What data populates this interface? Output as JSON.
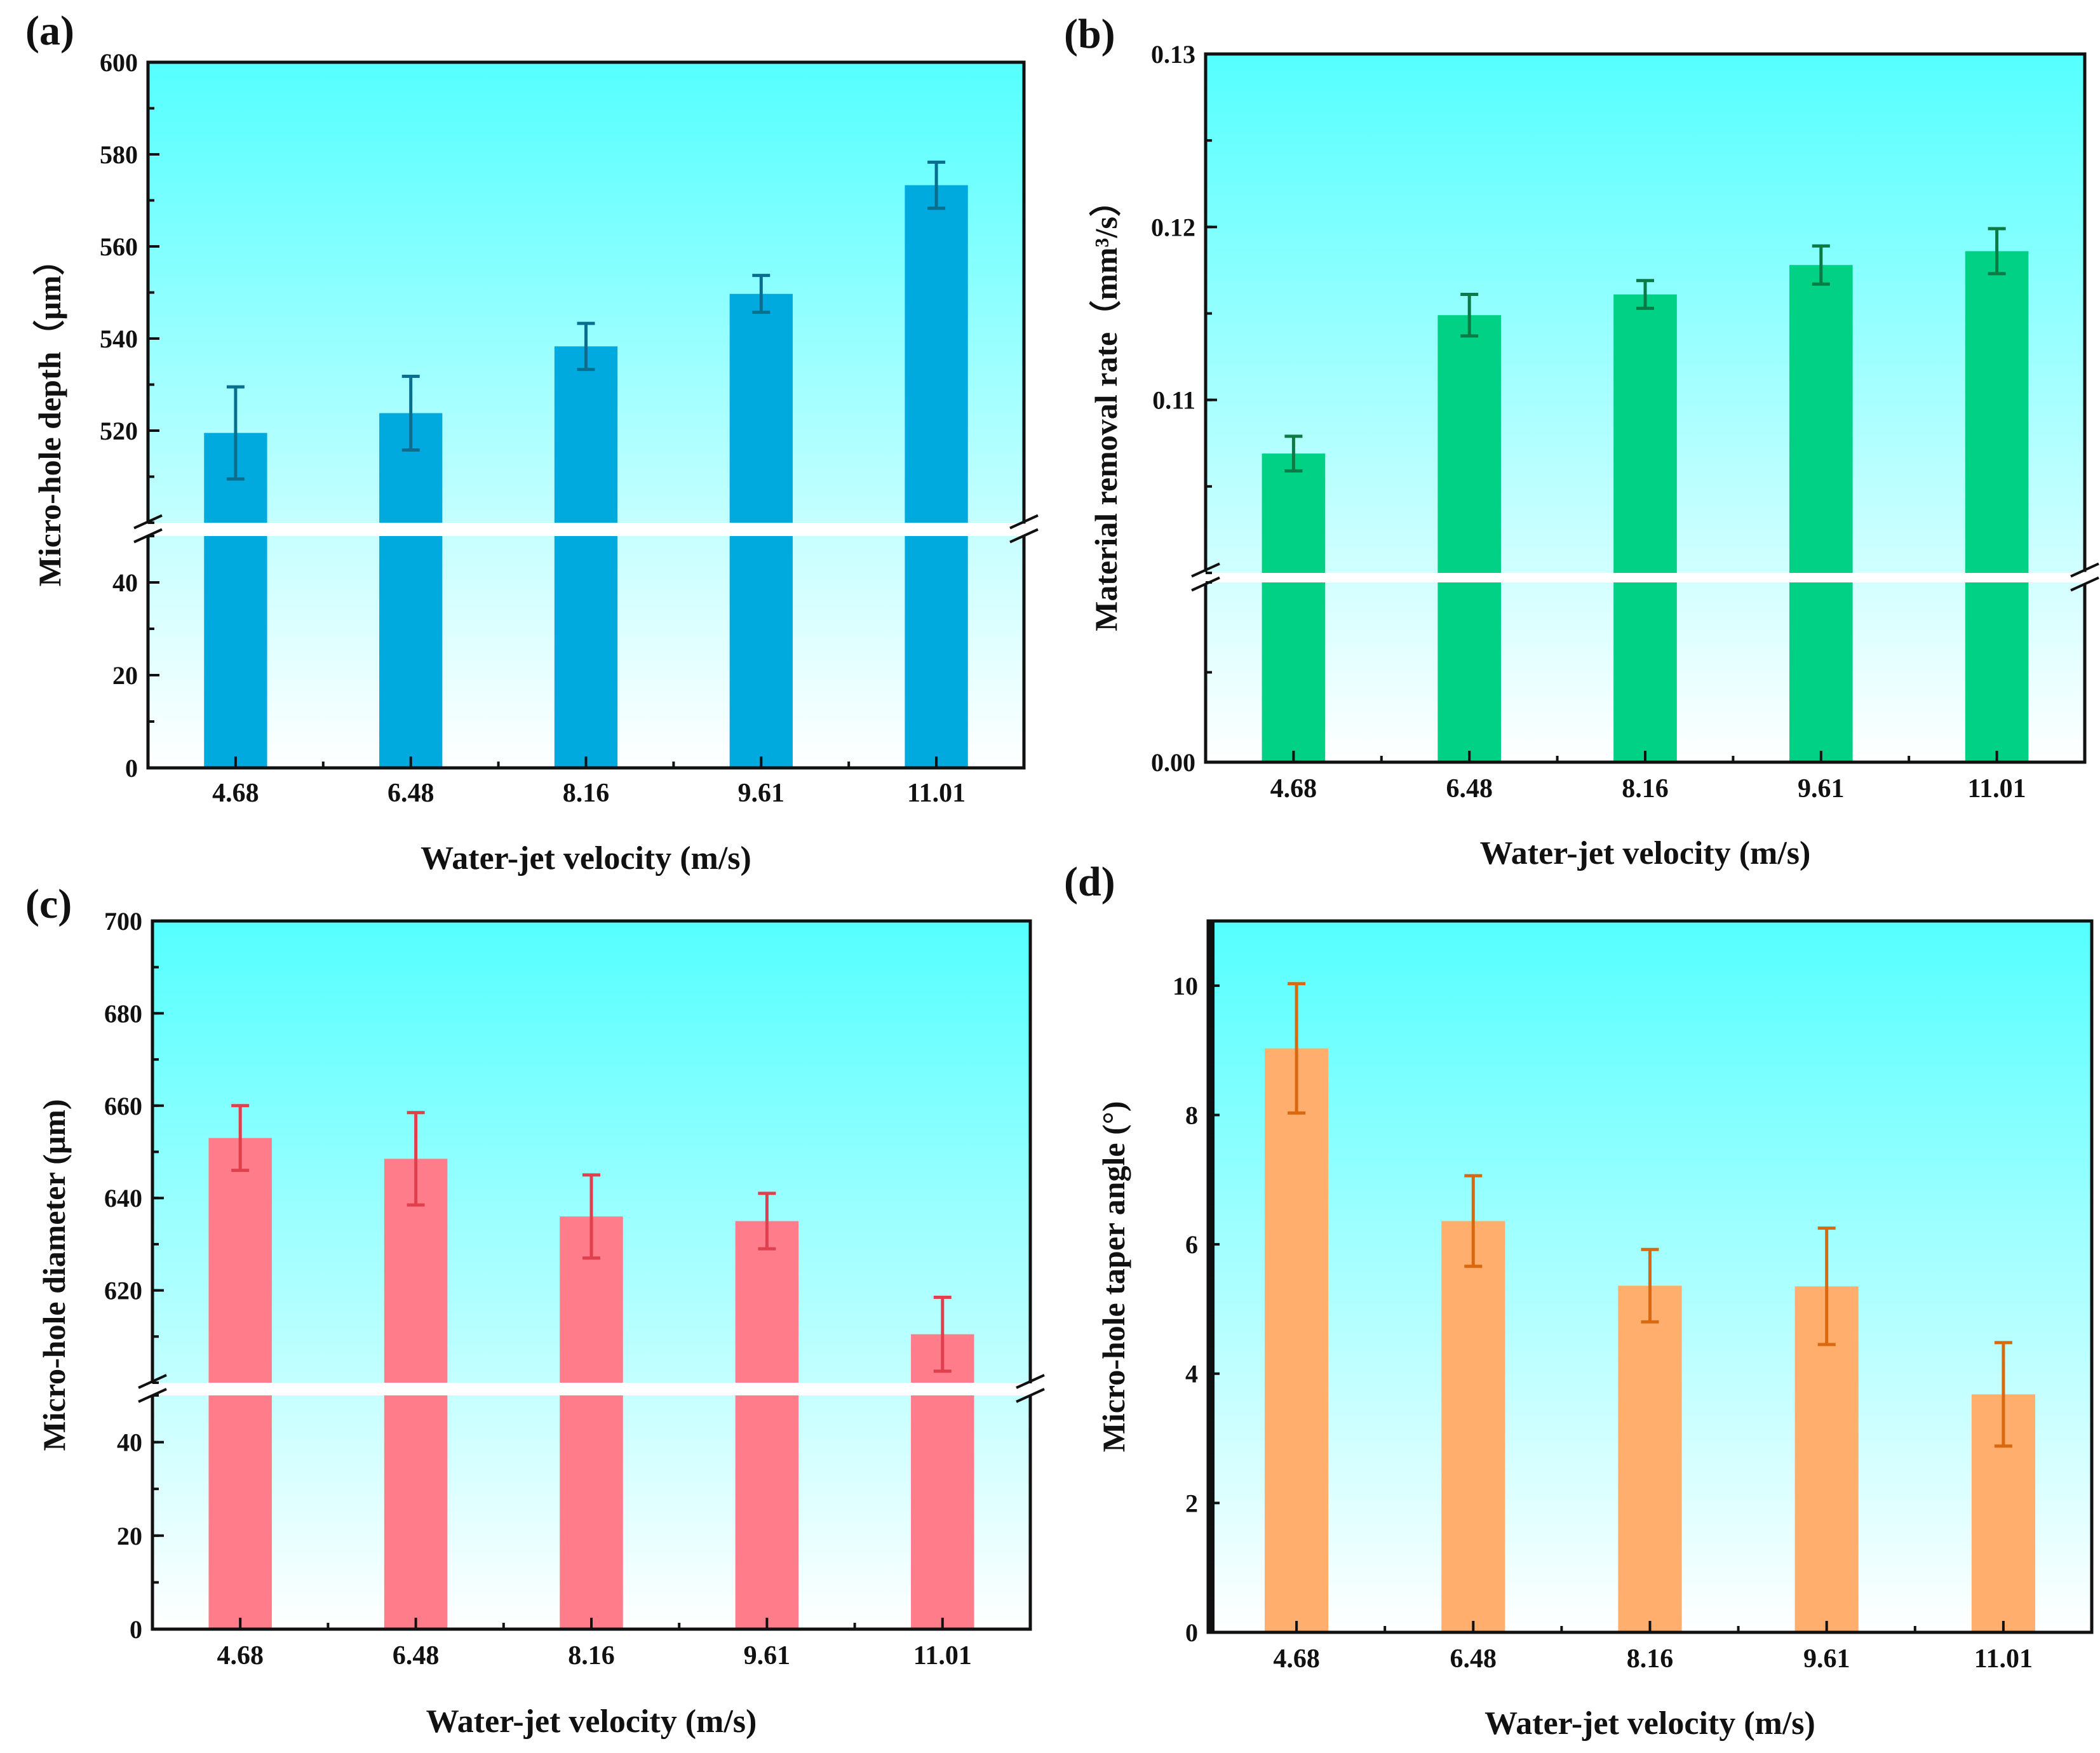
{
  "chart_data": [
    {
      "type": "bar",
      "panel_label": "(a)",
      "xlabel": "Water-jet velocity (m/s)",
      "ylabel": "Micro-hole depth（μm）",
      "categories": [
        "4.68",
        "6.48",
        "8.16",
        "9.61",
        "11.01"
      ],
      "values": [
        519.5,
        523.8,
        538.3,
        549.7,
        573.3
      ],
      "errors": [
        10,
        8,
        5,
        4,
        5
      ],
      "y_break": {
        "lower": [
          0,
          50
        ],
        "upper": [
          500,
          600
        ]
      },
      "yticks": [
        "0",
        "20",
        "40",
        "520",
        "540",
        "560",
        "580",
        "600"
      ],
      "bar_color": "#00a9de",
      "error_color": "#0a6f8f"
    },
    {
      "type": "bar",
      "panel_label": "(b)",
      "xlabel": "Water-jet velocity (m/s)",
      "ylabel": "Material removal rate（mm³/s）",
      "categories": [
        "4.68",
        "6.48",
        "8.16",
        "9.61",
        "11.01"
      ],
      "values": [
        0.1069,
        0.1149,
        0.1161,
        0.1178,
        0.1186
      ],
      "errors": [
        0.001,
        0.0012,
        0.0008,
        0.0011,
        0.0013
      ],
      "y_break": {
        "lower": [
          0,
          0.01
        ],
        "upper": [
          0.1,
          0.13
        ]
      },
      "yticks": [
        "0.00",
        "0.11",
        "0.12",
        "0.13"
      ],
      "bar_color": "#00d184",
      "error_color": "#0b7a45"
    },
    {
      "type": "bar",
      "panel_label": "(c)",
      "xlabel": "Water-jet velocity (m/s)",
      "ylabel": "Micro-hole diameter (μm)",
      "categories": [
        "4.68",
        "6.48",
        "8.16",
        "9.61",
        "11.01"
      ],
      "values": [
        653,
        648.5,
        636,
        635,
        610.5
      ],
      "errors": [
        7,
        10,
        9,
        6,
        8
      ],
      "y_break": {
        "lower": [
          0,
          50
        ],
        "upper": [
          600,
          700
        ]
      },
      "yticks": [
        "0",
        "20",
        "40",
        "620",
        "640",
        "660",
        "680",
        "700"
      ],
      "bar_color": "#ff7d8a",
      "error_color": "#e0404e"
    },
    {
      "type": "bar",
      "panel_label": "(d)",
      "xlabel": "Water-jet velocity (m/s)",
      "ylabel": "Micro-hole taper angle (°)",
      "categories": [
        "4.68",
        "6.48",
        "8.16",
        "9.61",
        "11.01"
      ],
      "values": [
        9.03,
        6.36,
        5.36,
        5.35,
        3.68
      ],
      "errors": [
        1.0,
        0.7,
        0.56,
        0.9,
        0.8
      ],
      "ylim": [
        0,
        11
      ],
      "yticks": [
        "0",
        "2",
        "4",
        "6",
        "8",
        "10"
      ],
      "bar_color": "#ffae6e",
      "error_color": "#d9680f"
    }
  ],
  "background_gradient": {
    "top": "#55ffff",
    "bottom": "#ffffff"
  }
}
